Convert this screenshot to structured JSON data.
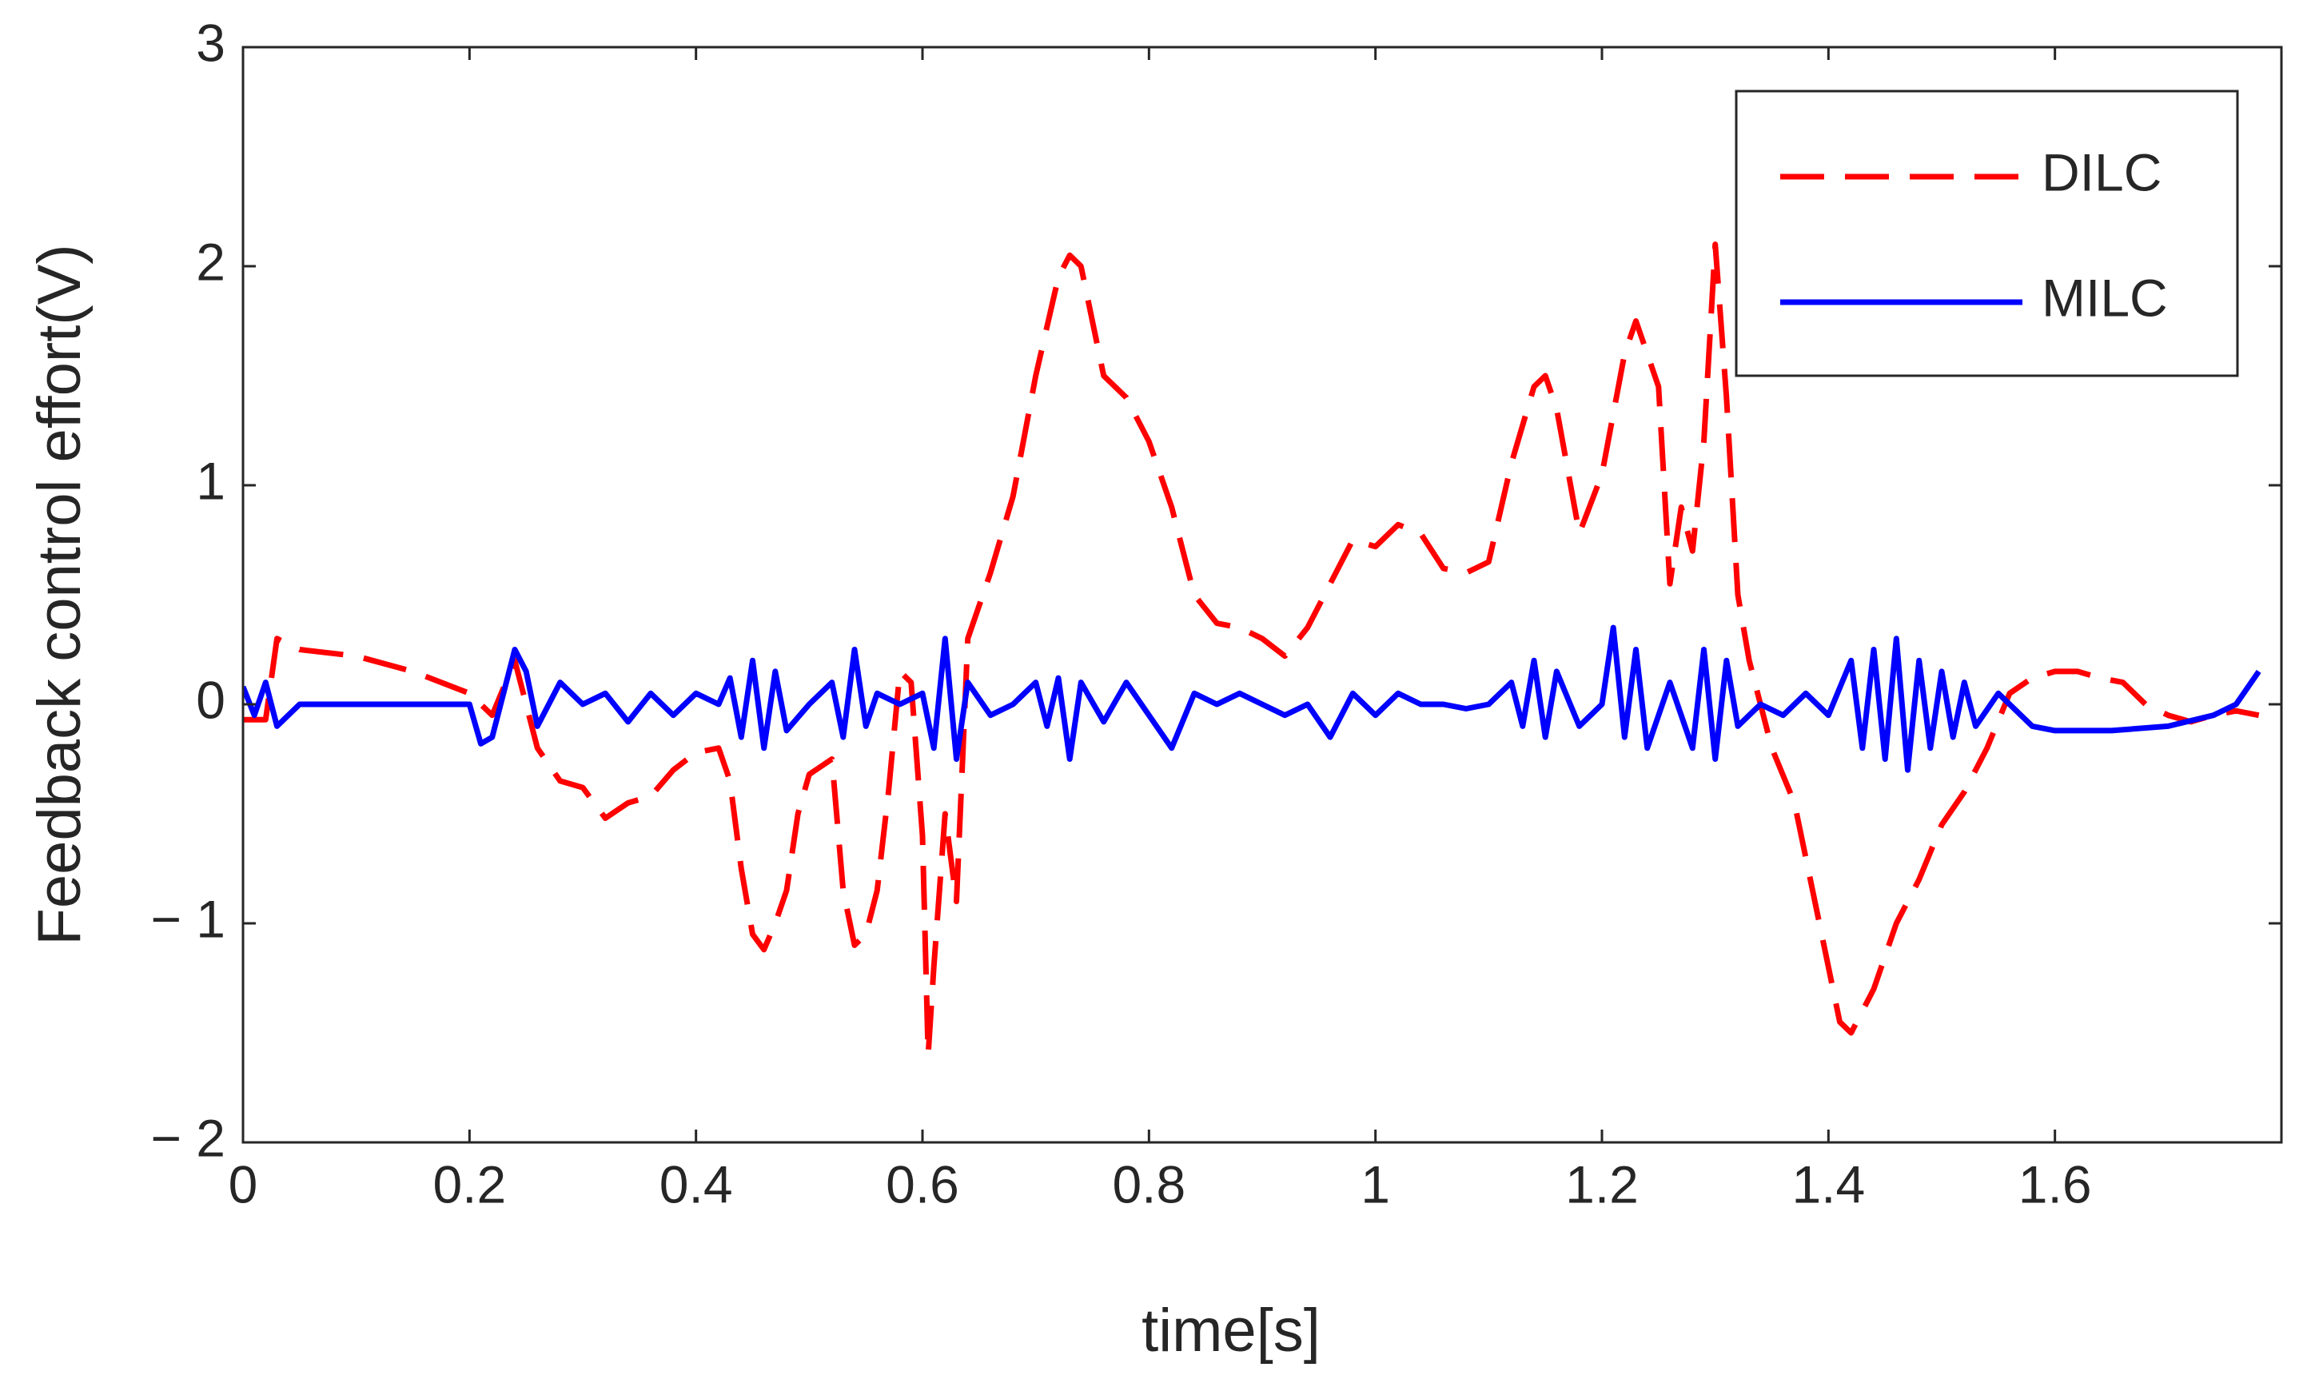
{
  "chart_data": {
    "type": "line",
    "xlabel": "time[s]",
    "ylabel": "Feedback control effort(V)",
    "xlim": [
      0,
      1.8
    ],
    "ylim": [
      -2,
      3
    ],
    "xticks": [
      0,
      0.2,
      0.4,
      0.6,
      0.8,
      1,
      1.2,
      1.4,
      1.6
    ],
    "yticks": [
      {
        "value": -2,
        "label": "− 2"
      },
      {
        "value": -1,
        "label": "− 1"
      },
      0,
      1,
      2,
      3
    ],
    "legend": "upper right",
    "series": [
      {
        "name": "DILC",
        "color": "#ff0000",
        "style": "dashed",
        "x": [
          0,
          0.02,
          0.03,
          0.05,
          0.1,
          0.15,
          0.2,
          0.22,
          0.24,
          0.26,
          0.28,
          0.3,
          0.32,
          0.34,
          0.36,
          0.38,
          0.4,
          0.42,
          0.43,
          0.44,
          0.45,
          0.46,
          0.47,
          0.48,
          0.49,
          0.5,
          0.52,
          0.53,
          0.54,
          0.55,
          0.56,
          0.57,
          0.58,
          0.59,
          0.6,
          0.605,
          0.61,
          0.62,
          0.63,
          0.64,
          0.66,
          0.68,
          0.7,
          0.72,
          0.73,
          0.74,
          0.76,
          0.78,
          0.8,
          0.82,
          0.84,
          0.86,
          0.88,
          0.9,
          0.92,
          0.94,
          0.96,
          0.98,
          1.0,
          1.02,
          1.04,
          1.06,
          1.08,
          1.1,
          1.12,
          1.14,
          1.15,
          1.16,
          1.18,
          1.2,
          1.22,
          1.23,
          1.24,
          1.25,
          1.26,
          1.27,
          1.28,
          1.29,
          1.3,
          1.31,
          1.32,
          1.33,
          1.35,
          1.37,
          1.39,
          1.41,
          1.42,
          1.44,
          1.46,
          1.48,
          1.5,
          1.52,
          1.54,
          1.56,
          1.58,
          1.6,
          1.62,
          1.64,
          1.66,
          1.68,
          1.7,
          1.72,
          1.74,
          1.76,
          1.78
        ],
        "values": [
          -0.07,
          -0.07,
          0.3,
          0.25,
          0.22,
          0.15,
          0.05,
          -0.05,
          0.2,
          -0.2,
          -0.35,
          -0.38,
          -0.52,
          -0.45,
          -0.42,
          -0.3,
          -0.22,
          -0.2,
          -0.35,
          -0.75,
          -1.05,
          -1.12,
          -1.0,
          -0.85,
          -0.5,
          -0.32,
          -0.25,
          -0.85,
          -1.1,
          -1.05,
          -0.85,
          -0.4,
          0.15,
          0.1,
          -0.6,
          -1.6,
          -1.2,
          -0.5,
          -0.9,
          0.3,
          0.6,
          0.95,
          1.5,
          1.95,
          2.05,
          2.0,
          1.5,
          1.4,
          1.2,
          0.9,
          0.5,
          0.37,
          0.35,
          0.3,
          0.22,
          0.35,
          0.55,
          0.75,
          0.72,
          0.82,
          0.78,
          0.62,
          0.6,
          0.65,
          1.1,
          1.45,
          1.5,
          1.35,
          0.78,
          1.05,
          1.6,
          1.75,
          1.6,
          1.45,
          0.55,
          0.9,
          0.7,
          1.2,
          2.1,
          1.4,
          0.5,
          0.2,
          -0.2,
          -0.45,
          -0.95,
          -1.45,
          -1.5,
          -1.3,
          -1.0,
          -0.8,
          -0.55,
          -0.4,
          -0.2,
          0.05,
          0.12,
          0.15,
          0.15,
          0.12,
          0.1,
          0.0,
          -0.05,
          -0.08,
          -0.05,
          -0.03,
          -0.05
        ]
      },
      {
        "name": "MILC",
        "color": "#0000ff",
        "style": "solid",
        "x": [
          0,
          0.01,
          0.02,
          0.03,
          0.05,
          0.1,
          0.15,
          0.2,
          0.21,
          0.22,
          0.24,
          0.25,
          0.26,
          0.28,
          0.3,
          0.32,
          0.34,
          0.36,
          0.38,
          0.4,
          0.42,
          0.43,
          0.44,
          0.45,
          0.46,
          0.47,
          0.48,
          0.5,
          0.52,
          0.53,
          0.54,
          0.55,
          0.56,
          0.58,
          0.6,
          0.61,
          0.62,
          0.63,
          0.64,
          0.66,
          0.68,
          0.7,
          0.71,
          0.72,
          0.73,
          0.74,
          0.76,
          0.78,
          0.8,
          0.82,
          0.84,
          0.86,
          0.88,
          0.9,
          0.92,
          0.94,
          0.96,
          0.98,
          1.0,
          1.02,
          1.04,
          1.06,
          1.08,
          1.1,
          1.12,
          1.13,
          1.14,
          1.15,
          1.16,
          1.18,
          1.2,
          1.21,
          1.22,
          1.23,
          1.24,
          1.26,
          1.28,
          1.29,
          1.3,
          1.31,
          1.32,
          1.34,
          1.36,
          1.38,
          1.4,
          1.42,
          1.43,
          1.44,
          1.45,
          1.46,
          1.47,
          1.48,
          1.49,
          1.5,
          1.51,
          1.52,
          1.53,
          1.55,
          1.58,
          1.6,
          1.65,
          1.7,
          1.74,
          1.76,
          1.78
        ],
        "values": [
          0.08,
          -0.05,
          0.1,
          -0.1,
          0.0,
          0.0,
          0.0,
          0.0,
          -0.18,
          -0.15,
          0.25,
          0.15,
          -0.1,
          0.1,
          0.0,
          0.05,
          -0.08,
          0.05,
          -0.05,
          0.05,
          0.0,
          0.12,
          -0.15,
          0.2,
          -0.2,
          0.15,
          -0.12,
          0.0,
          0.1,
          -0.15,
          0.25,
          -0.1,
          0.05,
          0.0,
          0.05,
          -0.2,
          0.3,
          -0.25,
          0.1,
          -0.05,
          0.0,
          0.1,
          -0.1,
          0.12,
          -0.25,
          0.1,
          -0.08,
          0.1,
          -0.05,
          -0.2,
          0.05,
          0.0,
          0.05,
          0.0,
          -0.05,
          0.0,
          -0.15,
          0.05,
          -0.05,
          0.05,
          0.0,
          0.0,
          -0.02,
          0.0,
          0.1,
          -0.1,
          0.2,
          -0.15,
          0.15,
          -0.1,
          0.0,
          0.35,
          -0.15,
          0.25,
          -0.2,
          0.1,
          -0.2,
          0.25,
          -0.25,
          0.2,
          -0.1,
          0.0,
          -0.05,
          0.05,
          -0.05,
          0.2,
          -0.2,
          0.25,
          -0.25,
          0.3,
          -0.3,
          0.2,
          -0.2,
          0.15,
          -0.15,
          0.1,
          -0.1,
          0.05,
          -0.1,
          -0.12,
          -0.12,
          -0.1,
          -0.05,
          0.0,
          0.15
        ]
      }
    ]
  }
}
